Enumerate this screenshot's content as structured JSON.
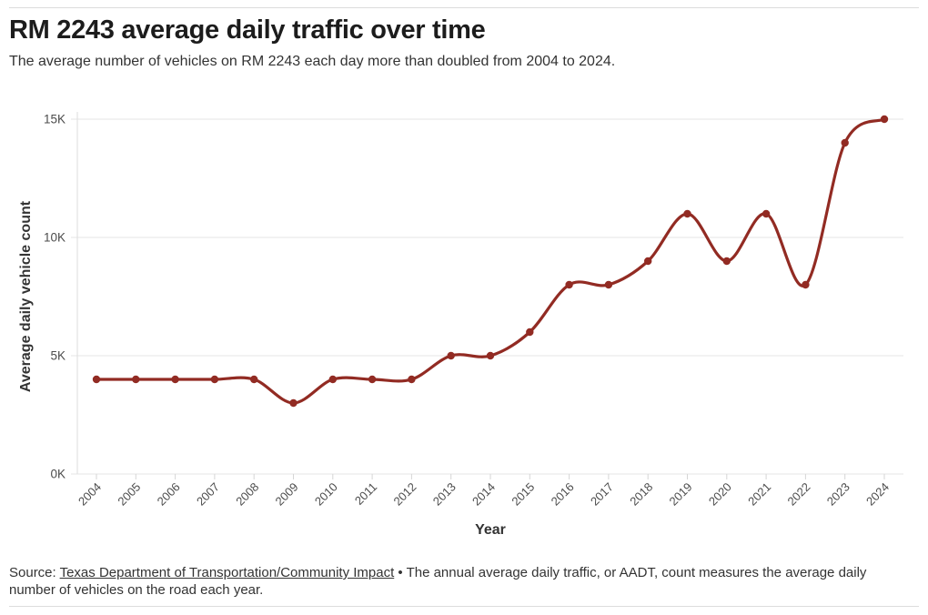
{
  "chart_data": {
    "type": "line",
    "title": "RM 2243 average daily traffic over time",
    "subtitle": "The average number of vehicles on RM 2243 each day more than doubled from 2004 to 2024.",
    "xlabel": "Year",
    "ylabel": "Average daily vehicle count",
    "x": [
      2004,
      2005,
      2006,
      2007,
      2008,
      2009,
      2010,
      2011,
      2012,
      2013,
      2014,
      2015,
      2016,
      2017,
      2018,
      2019,
      2020,
      2021,
      2022,
      2023,
      2024
    ],
    "series": [
      {
        "name": "Average daily vehicle count",
        "values": [
          4000,
          4000,
          4000,
          4000,
          4000,
          3000,
          4000,
          4000,
          4000,
          5000,
          5000,
          6000,
          8000,
          8000,
          9000,
          11000,
          9000,
          11000,
          8000,
          14000,
          15000
        ]
      }
    ],
    "ylim": [
      0,
      15000
    ],
    "yticks": [
      {
        "value": 0,
        "label": "0K"
      },
      {
        "value": 5000,
        "label": "5K"
      },
      {
        "value": 10000,
        "label": "10K"
      },
      {
        "value": 15000,
        "label": "15K"
      }
    ],
    "grid": true,
    "legend": false,
    "smooth": true,
    "markers": true,
    "line_color": "#922b23",
    "gridline_color": "#e4e4e4",
    "axis_line_color": "#dedede",
    "tick_color": "#d6d6d6",
    "tick_label_color": "#4c4c4c",
    "axis_title_color": "#333333"
  },
  "footer": {
    "source_prefix": "Source: ",
    "source_link": "Texas Department of Transportation/Community Impact",
    "separator": " • ",
    "source_note": "The annual average daily traffic, or AADT, count measures the average daily number of vehicles on the road each year."
  }
}
